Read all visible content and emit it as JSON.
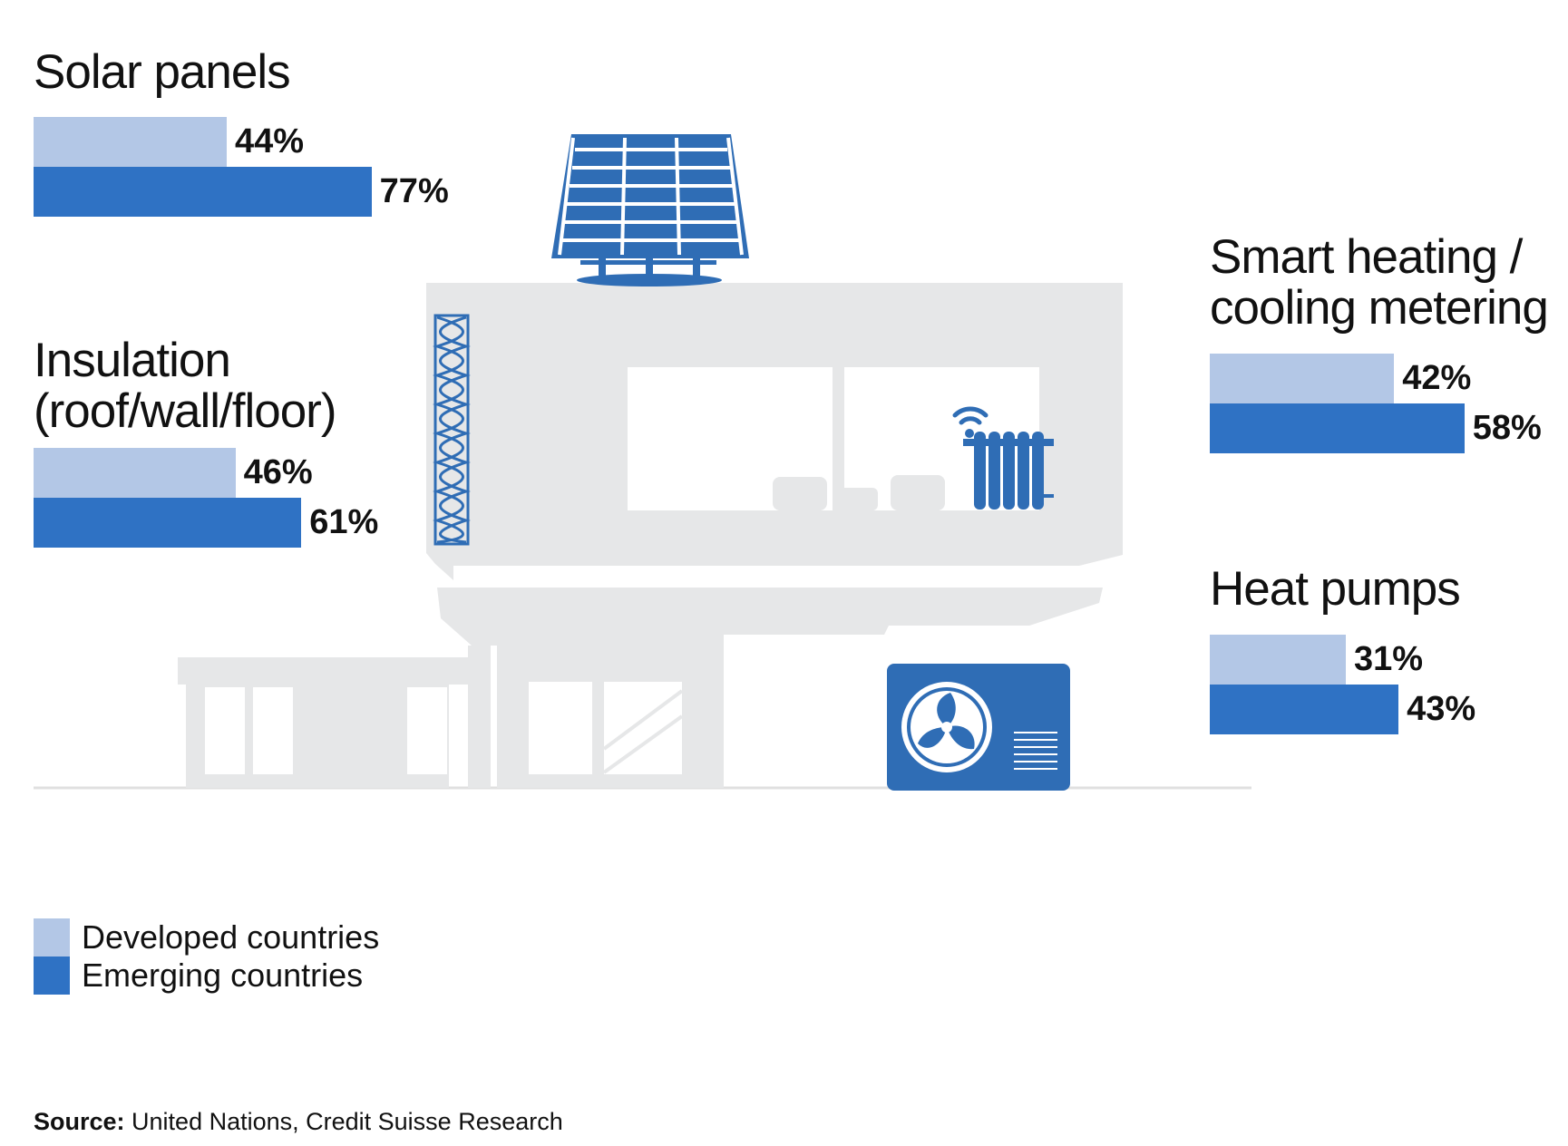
{
  "chart_data": {
    "type": "bar",
    "orientation": "horizontal",
    "unit": "%",
    "xlim": [
      0,
      100
    ],
    "grid": false,
    "legend_placement": "bottom-left",
    "categories": [
      {
        "key": "solar",
        "label_lines": [
          "Solar panels"
        ]
      },
      {
        "key": "insulation",
        "label_lines": [
          "Insulation",
          "(roof/wall/floor)"
        ]
      },
      {
        "key": "smart",
        "label_lines": [
          "Smart heating /",
          "cooling metering"
        ]
      },
      {
        "key": "heatpumps",
        "label_lines": [
          "Heat pumps"
        ]
      }
    ],
    "series": [
      {
        "name": "Developed countries",
        "color": "#b3c7e6",
        "values": [
          44,
          46,
          42,
          31
        ],
        "labels": [
          "44%",
          "46%",
          "42%",
          "31%"
        ]
      },
      {
        "name": "Emerging countries",
        "color": "#2f72c4",
        "values": [
          77,
          61,
          58,
          43
        ],
        "labels": [
          "77%",
          "61%",
          "58%",
          "43%"
        ]
      }
    ]
  },
  "source": {
    "prefix": "Source:",
    "text": " United Nations, Credit Suisse Research"
  },
  "illustration": {
    "icons": [
      "house-icon",
      "solar-panel-icon",
      "insulation-icon",
      "radiator-icon",
      "heat-pump-icon"
    ],
    "colors": {
      "house": "#e6e7e8",
      "icon": "#2f6db5",
      "ground": "#e0e0e0"
    }
  }
}
